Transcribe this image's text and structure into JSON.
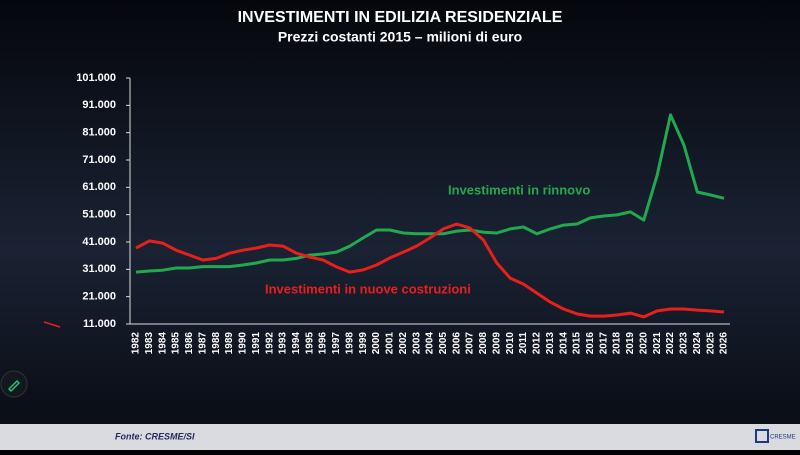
{
  "chart_data": {
    "type": "line",
    "title": "INVESTIMENTI IN EDILIZIA RESIDENZIALE",
    "subtitle": "Prezzi costanti 2015 – milioni di euro",
    "source": "Fonte: CRESME/SI",
    "logo": "CRESME",
    "categories": [
      "1982",
      "1983",
      "1984",
      "1985",
      "1986",
      "1987",
      "1988",
      "1989",
      "1990",
      "1991",
      "1992",
      "1993",
      "1994",
      "1995",
      "1996",
      "1997",
      "1998",
      "1999",
      "2000",
      "2001",
      "2002",
      "2003",
      "2004",
      "2005",
      "2006",
      "2007",
      "2008",
      "2009",
      "2010",
      "2011",
      "2012",
      "2013",
      "2014",
      "2015",
      "2016",
      "2017",
      "2018",
      "2019",
      "2020",
      "2021",
      "2022",
      "2023",
      "2024",
      "2025",
      "2026"
    ],
    "series": [
      {
        "name": "Investimenti in rinnovo",
        "color": "#22a94f",
        "values": [
          30000,
          30400,
          30700,
          31500,
          31500,
          32000,
          32000,
          32000,
          32600,
          33300,
          34400,
          34400,
          35000,
          36200,
          36600,
          37300,
          39500,
          42500,
          45400,
          45400,
          44300,
          44000,
          44000,
          44000,
          45000,
          45400,
          44600,
          44300,
          45800,
          46500,
          44000,
          45800,
          47200,
          47600,
          49800,
          50500,
          50900,
          52000,
          49000,
          65500,
          87500,
          76500,
          59300,
          58200,
          57000
        ]
      },
      {
        "name": "Investimenti in nuove costruzioni",
        "color": "#e8201c",
        "values": [
          38800,
          41400,
          40600,
          38000,
          36200,
          34400,
          35000,
          36900,
          38000,
          38800,
          39900,
          39500,
          36900,
          35500,
          34400,
          31900,
          30000,
          30800,
          32600,
          35200,
          37300,
          39500,
          42500,
          45800,
          47600,
          46100,
          41700,
          33300,
          27800,
          25600,
          22300,
          19000,
          16500,
          14700,
          13900,
          13900,
          14300,
          15000,
          13600,
          15800,
          16500,
          16500,
          16100,
          15800,
          15400
        ]
      }
    ],
    "ylim": [
      11000,
      101000
    ],
    "yticks": [
      {
        "value": 11000,
        "label": "11.000"
      },
      {
        "value": 21000,
        "label": "21.000"
      },
      {
        "value": 31000,
        "label": "31.000"
      },
      {
        "value": 41000,
        "label": "41.000"
      },
      {
        "value": 51000,
        "label": "51.000"
      },
      {
        "value": 61000,
        "label": "61.000"
      },
      {
        "value": 71000,
        "label": "71.000"
      },
      {
        "value": 81000,
        "label": "81.000"
      },
      {
        "value": 91000,
        "label": "91.000"
      },
      {
        "value": 101000,
        "label": "101.000"
      }
    ]
  }
}
